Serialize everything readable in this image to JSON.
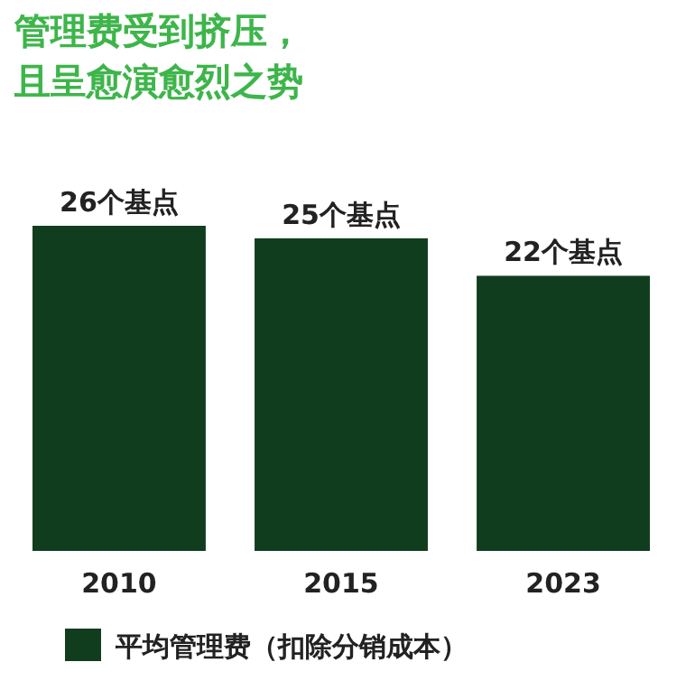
{
  "chart_data": {
    "type": "bar",
    "title": "管理费受到挤压，",
    "subtitle": "且呈愈演愈烈之势",
    "categories": [
      "2010",
      "2015",
      "2023"
    ],
    "series": [
      {
        "name": "平均管理费（扣除分销成本）",
        "color": "#113d1f",
        "values": [
          26,
          25,
          22
        ],
        "value_labels": [
          "26个基点",
          "25个基点",
          "22个基点"
        ]
      }
    ],
    "legend": "bottom",
    "grid": false
  }
}
